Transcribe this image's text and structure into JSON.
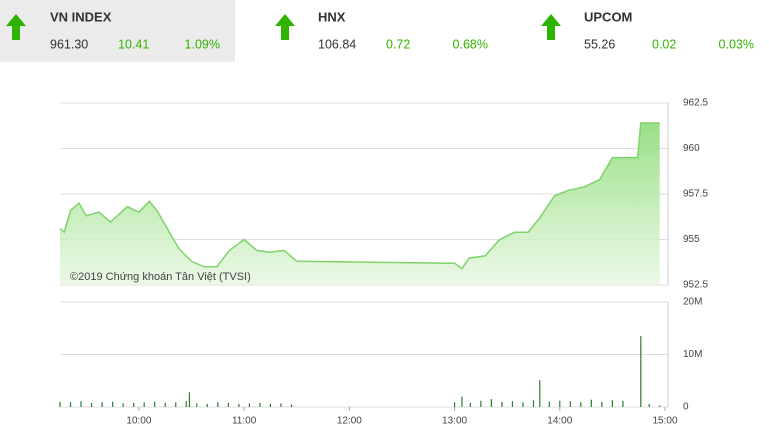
{
  "indices": [
    {
      "name": "VN INDEX",
      "price": "961.30",
      "change": "10.41",
      "percent": "1.09%"
    },
    {
      "name": "HNX",
      "price": "106.84",
      "change": "0.72",
      "percent": "0.68%"
    },
    {
      "name": "UPCOM",
      "price": "55.26",
      "change": "0.02",
      "percent": "0.03%"
    }
  ],
  "chart_data": [
    {
      "type": "area",
      "annotation": "©2019 Chứng khoán Tân Việt (TVSI)",
      "color": "#7ed36a",
      "x": [
        9.25,
        9.29,
        9.35,
        9.43,
        9.5,
        9.62,
        9.73,
        9.89,
        10.0,
        10.1,
        10.17,
        10.29,
        10.38,
        10.5,
        10.62,
        10.74,
        10.86,
        11.0,
        11.12,
        11.24,
        11.38,
        11.5,
        13.0,
        13.07,
        13.14,
        13.29,
        13.43,
        13.57,
        13.7,
        13.81,
        13.95,
        14.08,
        14.24,
        14.38,
        14.5,
        14.74,
        14.77,
        14.95
      ],
      "y": [
        955.6,
        955.4,
        956.6,
        957.0,
        956.3,
        956.5,
        955.96,
        956.8,
        956.5,
        957.1,
        956.6,
        955.4,
        954.5,
        953.8,
        953.5,
        953.5,
        954.4,
        955.0,
        954.4,
        954.3,
        954.4,
        953.8,
        953.7,
        953.4,
        953.98,
        954.1,
        955.0,
        955.4,
        955.4,
        956.2,
        957.4,
        957.7,
        957.9,
        958.3,
        959.5,
        959.5,
        961.4,
        961.4
      ],
      "xlim": [
        9.25,
        15.0
      ],
      "ylim": [
        952.5,
        962.5
      ],
      "yticks": [
        952.5,
        955,
        957.5,
        960,
        962.5
      ],
      "grid": true
    },
    {
      "type": "bar",
      "color": "#2e7d2e",
      "x": [
        9.25,
        9.35,
        9.45,
        9.55,
        9.65,
        9.75,
        9.85,
        9.95,
        10.05,
        10.15,
        10.25,
        10.35,
        10.45,
        10.48,
        10.55,
        10.65,
        10.75,
        10.85,
        10.95,
        11.05,
        11.15,
        11.25,
        11.35,
        11.45,
        13.0,
        13.07,
        13.15,
        13.25,
        13.35,
        13.45,
        13.55,
        13.65,
        13.75,
        13.81,
        13.9,
        14.0,
        14.1,
        14.2,
        14.3,
        14.4,
        14.5,
        14.6,
        14.77,
        14.85,
        14.95
      ],
      "values": [
        1000000,
        900000,
        1100000,
        800000,
        900000,
        1000000,
        700000,
        800000,
        900000,
        1000000,
        800000,
        900000,
        1100000,
        2800000,
        700000,
        600000,
        900000,
        800000,
        600000,
        700000,
        800000,
        600000,
        700000,
        500000,
        900000,
        2000000,
        800000,
        1200000,
        1500000,
        1000000,
        1100000,
        900000,
        1300000,
        5100000,
        1000000,
        1200000,
        1100000,
        900000,
        1400000,
        1000000,
        1300000,
        1200000,
        13500000,
        600000,
        300000
      ],
      "xlim": [
        9.25,
        15.0
      ],
      "ylim": [
        0,
        20000000
      ],
      "yticks": [
        0,
        {
          "value": 10000000,
          "label": "10M"
        },
        {
          "value": 20000000,
          "label": "20M"
        }
      ],
      "xticks": [
        {
          "value": 10,
          "label": "10:00"
        },
        {
          "value": 11,
          "label": "11:00"
        },
        {
          "value": 12,
          "label": "12:00"
        },
        {
          "value": 13,
          "label": "13:00"
        },
        {
          "value": 14,
          "label": "14:00"
        },
        {
          "value": 15,
          "label": "15:00"
        }
      ],
      "grid": true
    }
  ]
}
